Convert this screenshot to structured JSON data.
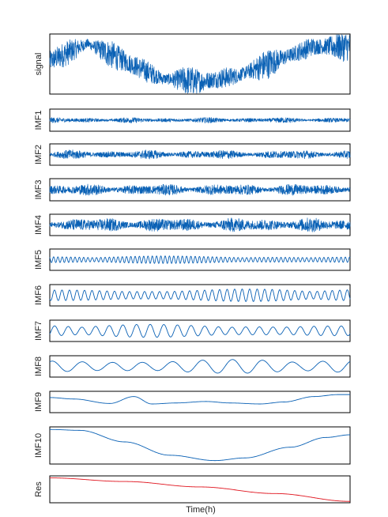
{
  "chart_data": {
    "type": "line",
    "xlabel": "Time(h)",
    "colors": {
      "component": "#0a61b5",
      "residual": "#e0141e"
    },
    "panels": [
      {
        "label": "signal",
        "kind": "noisy",
        "trend": [
          0.55,
          0.85,
          0.55,
          0.25,
          0.2,
          0.3,
          0.55,
          0.8,
          0.8
        ],
        "noise": 0.26,
        "range": [
          0,
          1
        ]
      },
      {
        "label": "IMF1",
        "kind": "noisy",
        "trend": [
          0.5
        ],
        "noise": 0.14,
        "range": [
          0,
          1
        ]
      },
      {
        "label": "IMF2",
        "kind": "noisy",
        "trend": [
          0.5
        ],
        "noise": 0.24,
        "range": [
          0,
          1
        ]
      },
      {
        "label": "IMF3",
        "kind": "noisy",
        "trend": [
          0.5
        ],
        "noise": 0.3,
        "range": [
          0,
          1
        ]
      },
      {
        "label": "IMF4",
        "kind": "noisy",
        "trend": [
          0.5
        ],
        "noise": 0.38,
        "range": [
          0,
          1
        ]
      },
      {
        "label": "IMF5",
        "kind": "wave",
        "cycles": 70,
        "amplitude": 0.24,
        "range": [
          -1,
          1
        ]
      },
      {
        "label": "IMF6",
        "kind": "wave",
        "cycles": 40,
        "amplitude": 0.42,
        "range": [
          -1,
          1
        ]
      },
      {
        "label": "IMF7",
        "kind": "wave",
        "cycles": 22,
        "amplitude": 0.42,
        "range": [
          -1,
          1
        ]
      },
      {
        "label": "IMF8",
        "kind": "wave",
        "cycles": 10,
        "amplitude": 0.45,
        "range": [
          -1,
          1
        ]
      },
      {
        "label": "IMF9",
        "kind": "points",
        "x": [
          0,
          0.08,
          0.2,
          0.28,
          0.34,
          0.42,
          0.52,
          0.6,
          0.7,
          0.78,
          0.88,
          0.96,
          1.0
        ],
        "y": [
          0.45,
          0.3,
          -0.15,
          0.55,
          -0.2,
          -0.1,
          0.05,
          -0.1,
          -0.2,
          0.0,
          0.55,
          0.75,
          0.75
        ],
        "range": [
          -1,
          1
        ]
      },
      {
        "label": "IMF10",
        "kind": "points",
        "x": [
          0,
          0.1,
          0.25,
          0.4,
          0.55,
          0.65,
          0.8,
          0.92,
          1.0
        ],
        "y": [
          0.9,
          0.85,
          0.2,
          -0.55,
          -0.85,
          -0.7,
          -0.1,
          0.45,
          0.6
        ],
        "range": [
          -1,
          1
        ]
      },
      {
        "label": "Res",
        "kind": "points",
        "x": [
          0,
          0.25,
          0.5,
          0.75,
          1.0
        ],
        "y": [
          0.95,
          0.65,
          0.2,
          -0.35,
          -1.0
        ],
        "range": [
          -1.05,
          1.05
        ],
        "color": "residual"
      }
    ]
  }
}
